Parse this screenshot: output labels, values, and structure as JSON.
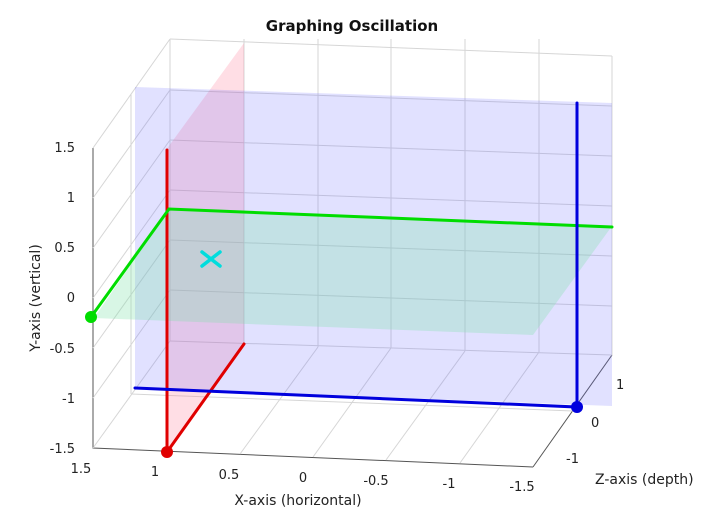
{
  "chart_data": {
    "type": "line",
    "view": "3d",
    "title": "Graphing Oscillation",
    "xlabel": "X-axis (horizontal)",
    "ylabel": "Y-axis (vertical)",
    "zlabel": "Z-axis (depth)",
    "xlim": [
      -1.5,
      1.5
    ],
    "ylim": [
      -1.5,
      1.5
    ],
    "zlim": [
      -1.5,
      1.5
    ],
    "x_ticks": [
      "1.5",
      "1",
      "0.5",
      "0",
      "-0.5",
      "-1",
      "-1.5"
    ],
    "y_ticks": [
      "1.5",
      "1",
      "0.5",
      "0",
      "-0.5",
      "-1",
      "-1.5"
    ],
    "z_ticks": [
      "1",
      "0",
      "-1"
    ],
    "grid": true,
    "series": [
      {
        "color": "#e00000",
        "style": "line+marker",
        "x": [
          1,
          1,
          1
        ],
        "y": [
          1.3,
          -1.5,
          -1.5
        ],
        "z": [
          -1.5,
          -1.5,
          1
        ]
      },
      {
        "color": "#00dd00",
        "style": "line+marker",
        "x": [
          1.5,
          1,
          -1.5
        ],
        "y": [
          -0.2,
          0.9,
          0.65
        ],
        "z": [
          -1.5,
          1,
          1
        ]
      },
      {
        "color": "#0000dd",
        "style": "line+marker",
        "x": [
          1,
          -1.5,
          -1.5
        ],
        "y": [
          -0.9,
          -1.2,
          1.75
        ],
        "z": [
          1,
          0,
          0
        ]
      },
      {
        "color": "#00dddd",
        "style": "marker-x",
        "x": [
          1
        ],
        "y": [
          0.5
        ],
        "z": [
          0
        ]
      }
    ],
    "planes": [
      {
        "color": "#ff6b8a",
        "axis": "x",
        "value": 1
      },
      {
        "color": "#6b6bff",
        "axis": "z",
        "value": 1
      },
      {
        "color": "#7fe0a8",
        "axis": "y",
        "value": 0.5
      }
    ]
  }
}
